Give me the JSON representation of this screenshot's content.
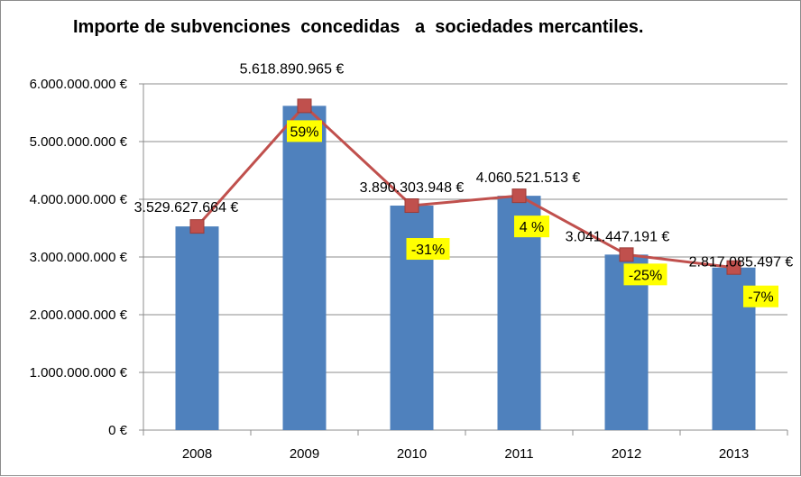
{
  "chart_data": {
    "type": "bar",
    "title": "Importe de subvenciones  concedidas   a  sociedades mercantiles.",
    "xlabel": "",
    "ylabel": "",
    "categories": [
      "2008",
      "2009",
      "2010",
      "2011",
      "2012",
      "2013"
    ],
    "series": [
      {
        "type": "bar",
        "values": [
          3529627664,
          5618890965,
          3890303948,
          4060521513,
          3041447191,
          2817085497
        ],
        "color": "#4f81bd"
      },
      {
        "type": "line",
        "values": [
          3529627664,
          5618890965,
          3890303948,
          4060521513,
          3041447191,
          2817085497
        ],
        "color": "#c0504d"
      }
    ],
    "data_labels": [
      "3.529.627.664 €",
      "5.618.890.965 €",
      "3.890.303.948 €",
      "4.060.521.513 €",
      "3.041.447.191 €",
      "2.817.085.497 €"
    ],
    "change_labels": [
      "",
      "59%",
      "-31%",
      "4 %",
      "-25%",
      "-7%"
    ],
    "change_label_color": "#ffff00",
    "ylim": [
      0,
      6000000000
    ],
    "y_ticks": [
      0,
      1000000000,
      2000000000,
      3000000000,
      4000000000,
      5000000000,
      6000000000
    ],
    "y_tick_labels": [
      "0 €",
      "1.000.000.000 €",
      "2.000.000.000 €",
      "3.000.000.000 €",
      "4.000.000.000 €",
      "5.000.000.000 €",
      "6.000.000.000 €"
    ],
    "grid": true,
    "legend": "none"
  }
}
